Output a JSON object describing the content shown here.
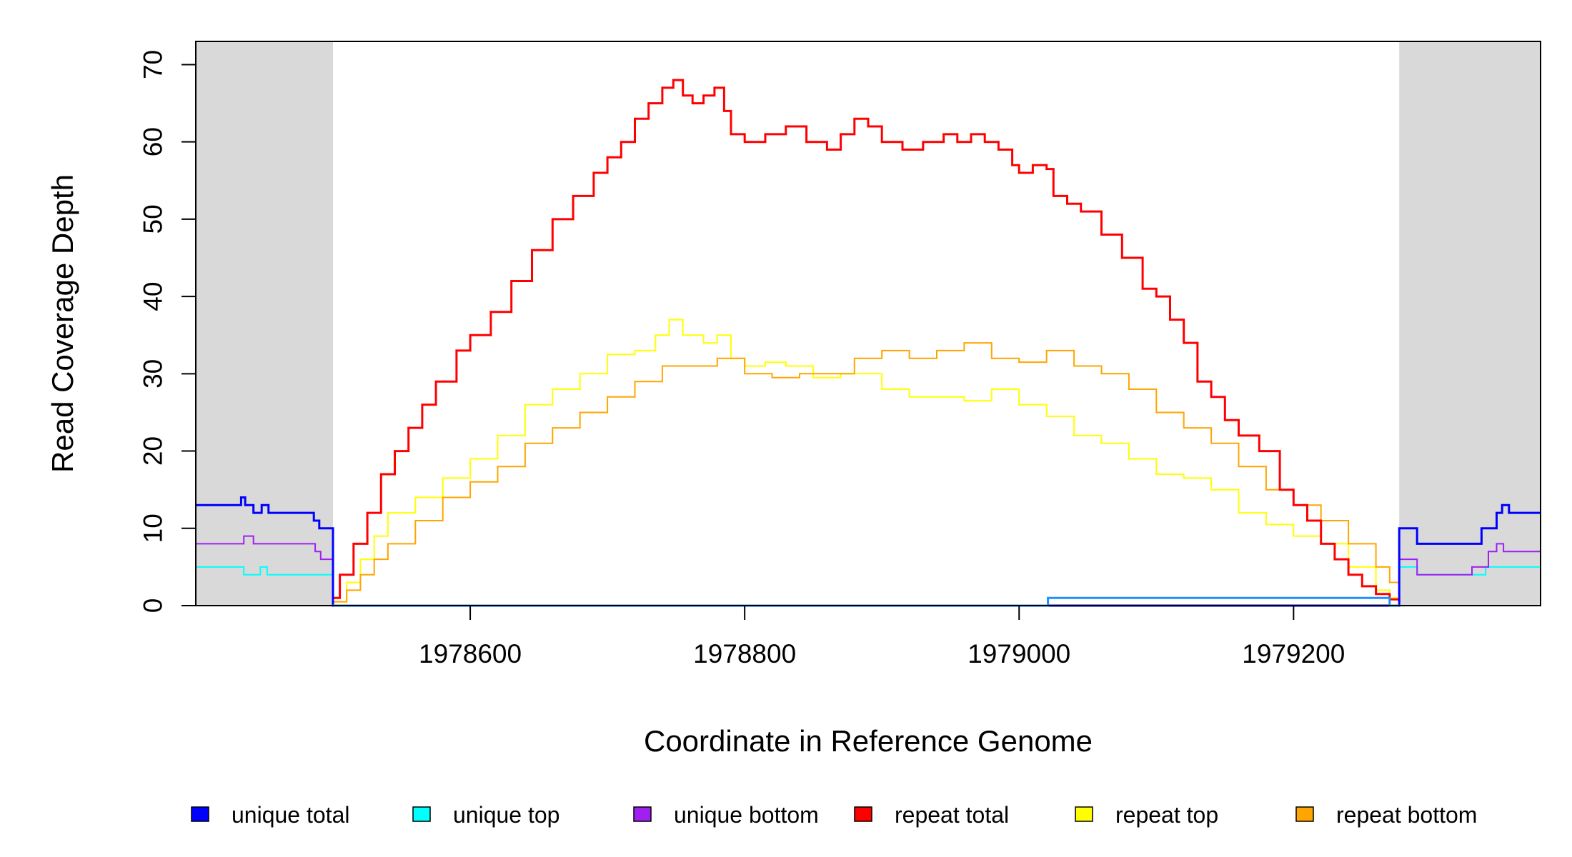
{
  "chart_data": {
    "type": "line",
    "xlabel": "Coordinate in Reference Genome",
    "ylabel": "Read Coverage Depth",
    "xlim": [
      1978400,
      1979380
    ],
    "ylim": [
      0,
      73
    ],
    "x_ticks": [
      {
        "value": 1978600,
        "label": "1978600"
      },
      {
        "value": 1978800,
        "label": "1978800"
      },
      {
        "value": 1979000,
        "label": "1979000"
      },
      {
        "value": 1979200,
        "label": "1979200"
      }
    ],
    "y_ticks": [
      {
        "value": 0,
        "label": "0"
      },
      {
        "value": 10,
        "label": "10"
      },
      {
        "value": 20,
        "label": "20"
      },
      {
        "value": 30,
        "label": "30"
      },
      {
        "value": 40,
        "label": "40"
      },
      {
        "value": 50,
        "label": "50"
      },
      {
        "value": 60,
        "label": "60"
      },
      {
        "value": 70,
        "label": "70"
      }
    ],
    "shaded_regions": [
      {
        "from": 1978400,
        "to": 1978500,
        "color": "#d9d9d9"
      },
      {
        "from": 1979277,
        "to": 1979380,
        "color": "#d9d9d9"
      }
    ],
    "legend_position": "bottom",
    "legend": [
      {
        "label": "unique total",
        "color": "#0000ff"
      },
      {
        "label": "unique top",
        "color": "#00ffff"
      },
      {
        "label": "unique bottom",
        "color": "#a020f0"
      },
      {
        "label": "repeat total",
        "color": "#ff0000"
      },
      {
        "label": "repeat top",
        "color": "#ffff00"
      },
      {
        "label": "repeat bottom",
        "color": "#ffa500"
      }
    ],
    "series": [
      {
        "name": "repeat top",
        "color": "#ffff00",
        "width": 2,
        "x": [
          1978500,
          1978510,
          1978520,
          1978530,
          1978540,
          1978560,
          1978580,
          1978600,
          1978620,
          1978640,
          1978660,
          1978680,
          1978700,
          1978720,
          1978735,
          1978745,
          1978755,
          1978770,
          1978780,
          1978790,
          1978800,
          1978815,
          1978830,
          1978850,
          1978870,
          1978885,
          1978900,
          1978920,
          1978940,
          1978960,
          1978980,
          1979000,
          1979020,
          1979040,
          1979060,
          1979080,
          1979100,
          1979120,
          1979140,
          1979160,
          1979180,
          1979200,
          1979220,
          1979240,
          1979260,
          1979270,
          1979277
        ],
        "y": [
          0.5,
          3,
          6,
          9,
          12,
          14,
          16.5,
          19,
          22,
          26,
          28,
          30,
          32.5,
          33,
          35,
          37,
          35,
          34,
          35,
          32,
          31,
          31.5,
          31,
          29.5,
          30,
          30,
          28,
          27,
          27,
          26.5,
          28,
          26,
          24.5,
          22,
          21,
          19,
          17,
          16.5,
          15,
          12,
          10.5,
          9,
          8,
          5,
          2,
          1,
          0.5
        ]
      },
      {
        "name": "repeat bottom",
        "color": "#ffa500",
        "width": 2,
        "x": [
          1978500,
          1978510,
          1978520,
          1978530,
          1978540,
          1978560,
          1978580,
          1978600,
          1978620,
          1978640,
          1978660,
          1978680,
          1978700,
          1978720,
          1978740,
          1978760,
          1978780,
          1978800,
          1978820,
          1978840,
          1978860,
          1978880,
          1978900,
          1978920,
          1978940,
          1978960,
          1978980,
          1979000,
          1979020,
          1979040,
          1979060,
          1979080,
          1979100,
          1979120,
          1979140,
          1979160,
          1979180,
          1979200,
          1979220,
          1979240,
          1979260,
          1979270,
          1979277
        ],
        "y": [
          0.5,
          2,
          4,
          6,
          8,
          11,
          14,
          16,
          18,
          21,
          23,
          25,
          27,
          29,
          31,
          31,
          32,
          30,
          29.5,
          30,
          30,
          32,
          33,
          32,
          33,
          34,
          32,
          31.5,
          33,
          31,
          30,
          28,
          25,
          23,
          21,
          18,
          15,
          13,
          11,
          8,
          5,
          3,
          1
        ]
      },
      {
        "name": "repeat total",
        "color": "#ff0000",
        "width": 3,
        "x": [
          1978500,
          1978505,
          1978515,
          1978525,
          1978535,
          1978545,
          1978555,
          1978565,
          1978575,
          1978590,
          1978600,
          1978615,
          1978630,
          1978645,
          1978660,
          1978675,
          1978690,
          1978700,
          1978710,
          1978720,
          1978730,
          1978740,
          1978748,
          1978755,
          1978762,
          1978770,
          1978778,
          1978785,
          1978790,
          1978800,
          1978815,
          1978830,
          1978845,
          1978860,
          1978870,
          1978880,
          1978890,
          1978900,
          1978915,
          1978930,
          1978945,
          1978955,
          1978965,
          1978975,
          1978985,
          1978995,
          1979000,
          1979010,
          1979020,
          1979025,
          1979035,
          1979045,
          1979060,
          1979075,
          1979090,
          1979100,
          1979110,
          1979120,
          1979130,
          1979140,
          1979150,
          1979160,
          1979175,
          1979190,
          1979200,
          1979210,
          1979220,
          1979230,
          1979240,
          1979250,
          1979260,
          1979270,
          1979277
        ],
        "y": [
          1,
          4,
          8,
          12,
          17,
          20,
          23,
          26,
          29,
          33,
          35,
          38,
          42,
          46,
          50,
          53,
          56,
          58,
          60,
          63,
          65,
          67,
          68,
          66,
          65,
          66,
          67,
          64,
          61,
          60,
          61,
          62,
          60,
          59,
          61,
          63,
          62,
          60,
          59,
          60,
          61,
          60,
          61,
          60,
          59,
          57,
          56,
          57,
          56.5,
          53,
          52,
          51,
          48,
          45,
          41,
          40,
          37,
          34,
          29,
          27,
          24,
          22,
          20,
          15,
          13,
          11,
          8,
          6,
          4,
          2.5,
          1.5,
          0.8,
          0.5
        ]
      },
      {
        "name": "unique top",
        "color": "#00ffff",
        "width": 2,
        "x": [
          1978400,
          1978435,
          1978435,
          1978447,
          1978447,
          1978452,
          1978452,
          1978500,
          1978500,
          1979277,
          1979277,
          1979290,
          1979290,
          1979340,
          1979340,
          1979380
        ],
        "y": [
          5,
          5,
          4,
          4,
          5,
          5,
          4,
          4,
          0,
          0,
          5,
          5,
          4,
          4,
          5,
          5
        ]
      },
      {
        "name": "unique bottom",
        "color": "#a020f0",
        "width": 2,
        "x": [
          1978400,
          1978435,
          1978435,
          1978442,
          1978442,
          1978487,
          1978487,
          1978491,
          1978491,
          1978500,
          1978500,
          1979277,
          1979277,
          1979290,
          1979290,
          1979330,
          1979330,
          1979342,
          1979342,
          1979348,
          1979348,
          1979353,
          1979353,
          1979380
        ],
        "y": [
          8,
          8,
          9,
          9,
          8,
          8,
          7,
          7,
          6,
          6,
          0,
          0,
          6,
          6,
          4,
          4,
          5,
          5,
          7,
          7,
          8,
          8,
          7,
          7
        ]
      },
      {
        "name": "unique total",
        "color": "#0000ff",
        "width": 3,
        "x": [
          1978400,
          1978433,
          1978433,
          1978436,
          1978436,
          1978442,
          1978442,
          1978448,
          1978448,
          1978453,
          1978453,
          1978486,
          1978486,
          1978490,
          1978490,
          1978500,
          1978500,
          1979277,
          1979277,
          1979290,
          1979290,
          1979337,
          1979337,
          1979348,
          1979348,
          1979352,
          1979352,
          1979357,
          1979357,
          1979380
        ],
        "y": [
          13,
          13,
          14,
          14,
          13,
          13,
          12,
          12,
          13,
          13,
          12,
          12,
          11,
          11,
          10,
          10,
          0,
          0,
          10,
          10,
          8,
          8,
          10,
          10,
          12,
          12,
          13,
          13,
          12,
          12
        ]
      },
      {
        "name": "",
        "color": "#1e90ff",
        "width": 3,
        "x": [
          1978500,
          1979021,
          1979021,
          1979270,
          1979270,
          1979277
        ],
        "y": [
          0,
          0,
          1,
          1,
          0,
          0
        ]
      }
    ]
  }
}
